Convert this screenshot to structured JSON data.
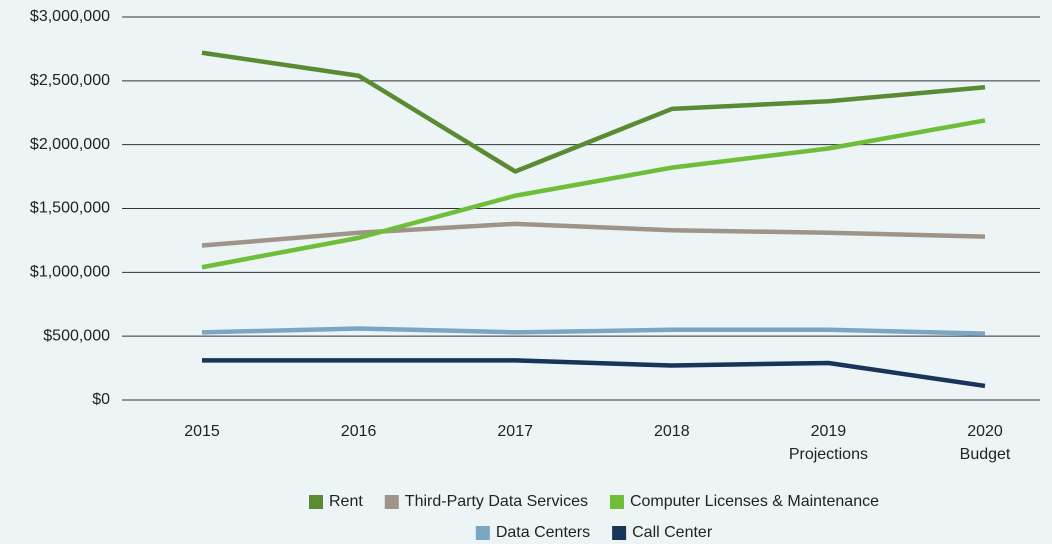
{
  "chart_data": {
    "type": "line",
    "categories": [
      "2015",
      "2016",
      "2017",
      "2018",
      "2019 Projections",
      "2020 Budget"
    ],
    "series": [
      {
        "name": "Rent",
        "color": "#5a8a32",
        "values": [
          2720000,
          2540000,
          1790000,
          2280000,
          2340000,
          2450000
        ]
      },
      {
        "name": "Third-Party Data Services",
        "color": "#a09488",
        "values": [
          1210000,
          1310000,
          1380000,
          1330000,
          1310000,
          1280000
        ]
      },
      {
        "name": "Computer Licenses & Maintenance",
        "color": "#6fbe3a",
        "values": [
          1040000,
          1270000,
          1600000,
          1820000,
          1970000,
          2190000
        ]
      },
      {
        "name": "Data Centers",
        "color": "#7aa6c2",
        "values": [
          530000,
          560000,
          530000,
          550000,
          550000,
          520000
        ]
      },
      {
        "name": "Call Center",
        "color": "#1a3358",
        "values": [
          310000,
          310000,
          310000,
          270000,
          290000,
          110000
        ]
      }
    ],
    "ylim": [
      0,
      3000000
    ],
    "yticks": [
      {
        "value": 0,
        "label": "$0"
      },
      {
        "value": 500000,
        "label": "$500,000"
      },
      {
        "value": 1000000,
        "label": "$1,000,000"
      },
      {
        "value": 1500000,
        "label": "$1,500,000"
      },
      {
        "value": 2000000,
        "label": "$2,000,000"
      },
      {
        "value": 2500000,
        "label": "$2,500,000"
      },
      {
        "value": 3000000,
        "label": "$3,000,000"
      }
    ],
    "grid": true,
    "legend": "bottom"
  }
}
